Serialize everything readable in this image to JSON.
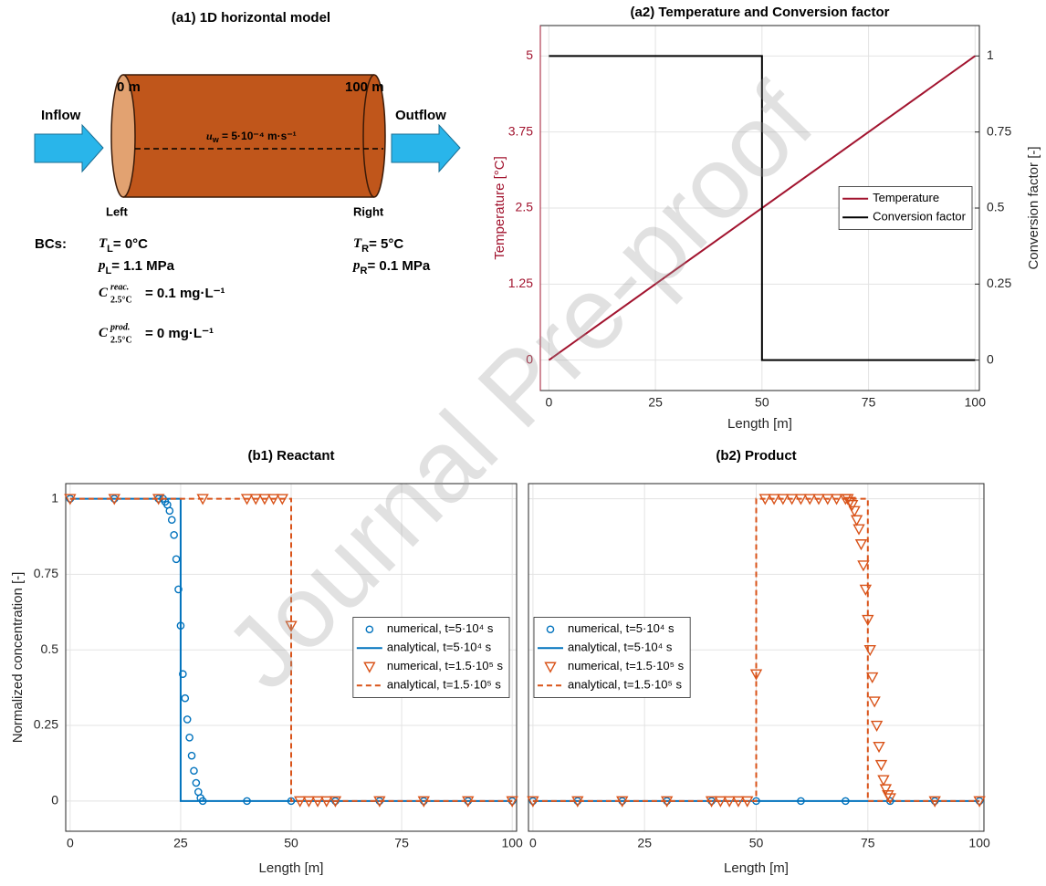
{
  "diagram": {
    "title": "(a1) 1D horizontal model",
    "left_end": "0 m",
    "right_end": "100 m",
    "inflow": "Inflow",
    "outflow": "Outflow",
    "velocity": {
      "symbol": "u",
      "sub": "w",
      "text": " = 5·10⁻⁴ m·s⁻¹"
    },
    "left": "Left",
    "right": "Right",
    "bcs_label": "BCs:",
    "bcs_left": [
      {
        "symbol": "T",
        "sub": "L",
        "text": "= 0°C"
      },
      {
        "symbol": "p",
        "sub": "L",
        "text": "= 1.1 MPa"
      },
      {
        "symbol": "C",
        "sup": "reac.",
        "sub": "2.5°C",
        "text": "= 0.1 mg·L⁻¹"
      },
      {
        "symbol": "C",
        "sup": "prod.",
        "sub": "2.5°C",
        "text": "= 0 mg·L⁻¹"
      }
    ],
    "bcs_right": [
      {
        "symbol": "T",
        "sub": "R",
        "text": "= 5°C"
      },
      {
        "symbol": "p",
        "sub": "R",
        "text": "= 0.1 MPa"
      }
    ]
  },
  "watermark": "Journal Pre-proof",
  "chart_data": [
    {
      "type": "line",
      "title": "(a2) Temperature and Conversion factor",
      "xlabel": "Length [m]",
      "ylabel": "Temperature [°C]",
      "y2label": "Conversion factor [-]",
      "xlim": [
        -2,
        101
      ],
      "xticks": [
        0,
        25,
        50,
        75,
        100
      ],
      "ylim": [
        -0.5,
        5.5
      ],
      "yticks": [
        0,
        1.25,
        2.5,
        3.75,
        5
      ],
      "y2lim": [
        -0.1,
        1.1
      ],
      "y2ticks": [
        0,
        0.25,
        0.5,
        0.75,
        1
      ],
      "grid": true,
      "legend": "center right",
      "series": [
        {
          "name": "Temperature",
          "color": "#A2142F",
          "linestyle": "solid",
          "marker": "none",
          "x": [
            0,
            100
          ],
          "values": [
            0,
            5
          ]
        },
        {
          "name": "Conversion factor",
          "color": "#000000",
          "linestyle": "solid",
          "marker": "none",
          "axis": "y2",
          "x": [
            0,
            50,
            50,
            100
          ],
          "values": [
            1,
            1,
            0,
            0
          ]
        }
      ]
    },
    {
      "type": "line",
      "title": "(b1) Reactant",
      "xlabel": "Length [m]",
      "ylabel": "Normalized concentration [-]",
      "xlim": [
        -1,
        101
      ],
      "xticks": [
        0,
        25,
        50,
        75,
        100
      ],
      "ylim": [
        -0.1,
        1.05
      ],
      "yticks": [
        0,
        0.25,
        0.5,
        0.75,
        1
      ],
      "show_yticklabels": true,
      "grid": true,
      "legend": "center right",
      "series": [
        {
          "name": "numerical, t=5·10⁴ s",
          "color": "#0072BD",
          "linestyle": "none",
          "marker": "circle",
          "x": [
            0,
            10,
            20,
            21,
            21.5,
            22,
            22.5,
            23,
            23.5,
            24,
            24.5,
            25,
            25.5,
            26,
            26.5,
            27,
            27.5,
            28,
            28.5,
            29,
            29.5,
            30,
            40,
            50,
            60,
            70,
            80,
            90,
            100
          ],
          "values": [
            1,
            1,
            1,
            1,
            0.99,
            0.98,
            0.96,
            0.93,
            0.88,
            0.8,
            0.7,
            0.58,
            0.42,
            0.34,
            0.27,
            0.21,
            0.15,
            0.1,
            0.06,
            0.03,
            0.01,
            0,
            0,
            0,
            0,
            0,
            0,
            0,
            0
          ]
        },
        {
          "name": "analytical, t=5·10⁴ s",
          "color": "#0072BD",
          "linestyle": "solid",
          "marker": "none",
          "x": [
            0,
            25,
            25,
            100
          ],
          "values": [
            1,
            1,
            0,
            0
          ]
        },
        {
          "name": "numerical, t=1.5·10⁵ s",
          "color": "#D95319",
          "linestyle": "none",
          "marker": "triangle",
          "x": [
            0,
            10,
            20,
            30,
            40,
            42,
            44,
            46,
            48,
            50,
            52,
            54,
            56,
            58,
            60,
            70,
            80,
            90,
            100
          ],
          "values": [
            1,
            1,
            1,
            1,
            1,
            1,
            1,
            1,
            1,
            0.58,
            0,
            0,
            0,
            0,
            0,
            0,
            0,
            0,
            0
          ]
        },
        {
          "name": "analytical, t=1.5·10⁵ s",
          "color": "#D95319",
          "linestyle": "dashed",
          "marker": "none",
          "x": [
            0,
            50,
            50,
            100
          ],
          "values": [
            1,
            1,
            0,
            0
          ]
        }
      ]
    },
    {
      "type": "line",
      "title": "(b2) Product",
      "xlabel": "Length [m]",
      "xlim": [
        -1,
        101
      ],
      "xticks": [
        0,
        25,
        50,
        75,
        100
      ],
      "ylim": [
        -0.1,
        1.05
      ],
      "yticks": [
        0,
        0.25,
        0.5,
        0.75,
        1
      ],
      "show_yticklabels": false,
      "grid": true,
      "legend": "center left",
      "series": [
        {
          "name": "numerical, t=5·10⁴ s",
          "color": "#0072BD",
          "linestyle": "none",
          "marker": "circle",
          "x": [
            0,
            10,
            20,
            30,
            40,
            50,
            60,
            70,
            80,
            90,
            100
          ],
          "values": [
            0,
            0,
            0,
            0,
            0,
            0,
            0,
            0,
            0,
            0,
            0
          ]
        },
        {
          "name": "analytical, t=5·10⁴ s",
          "color": "#0072BD",
          "linestyle": "solid",
          "marker": "none",
          "x": [
            0,
            100
          ],
          "values": [
            0,
            0
          ]
        },
        {
          "name": "numerical, t=1.5·10⁵ s",
          "color": "#D95319",
          "linestyle": "none",
          "marker": "triangle",
          "x": [
            0,
            10,
            20,
            30,
            40,
            42,
            44,
            46,
            48,
            50,
            52,
            54,
            56,
            58,
            60,
            62,
            64,
            66,
            68,
            70,
            70.5,
            71,
            71.5,
            72,
            72.5,
            73,
            73.5,
            74,
            74.5,
            75,
            75.5,
            76,
            76.5,
            77,
            77.5,
            78,
            78.5,
            79,
            79.5,
            80,
            90,
            100
          ],
          "values": [
            0,
            0,
            0,
            0,
            0,
            0,
            0,
            0,
            0,
            0.42,
            1,
            1,
            1,
            1,
            1,
            1,
            1,
            1,
            1,
            1,
            1,
            0.99,
            0.98,
            0.96,
            0.93,
            0.9,
            0.85,
            0.78,
            0.7,
            0.6,
            0.5,
            0.41,
            0.33,
            0.25,
            0.18,
            0.12,
            0.07,
            0.04,
            0.02,
            0.01,
            0,
            0
          ]
        },
        {
          "name": "analytical, t=1.5·10⁵ s",
          "color": "#D95319",
          "linestyle": "dashed",
          "marker": "none",
          "x": [
            0,
            50,
            50,
            75,
            75,
            100
          ],
          "values": [
            0,
            0,
            1,
            1,
            0,
            0
          ]
        }
      ]
    }
  ]
}
